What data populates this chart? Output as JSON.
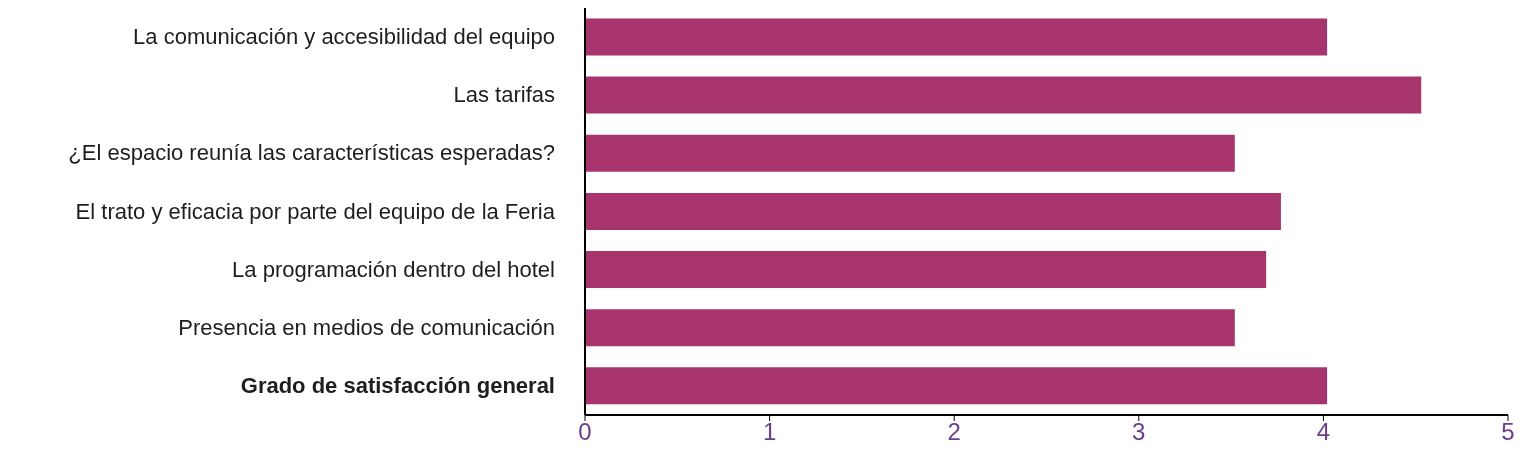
{
  "chart_data": {
    "type": "bar",
    "orientation": "horizontal",
    "categories": [
      "La comunicación y accesibilidad del equipo",
      "Las tarifas",
      "¿El espacio reunía las características esperadas?",
      "El trato y eficacia por parte del equipo de la Feria",
      "La programación dentro del hotel",
      "Presencia en medios de comunicación",
      "Grado de satisfacción general"
    ],
    "series": [
      {
        "color": "#a8346e",
        "values": [
          4.02,
          4.53,
          3.52,
          3.77,
          3.69,
          3.52,
          4.02
        ]
      }
    ],
    "xlim": [
      0,
      5
    ],
    "xticks": [
      0,
      1,
      2,
      3,
      4,
      5
    ]
  }
}
